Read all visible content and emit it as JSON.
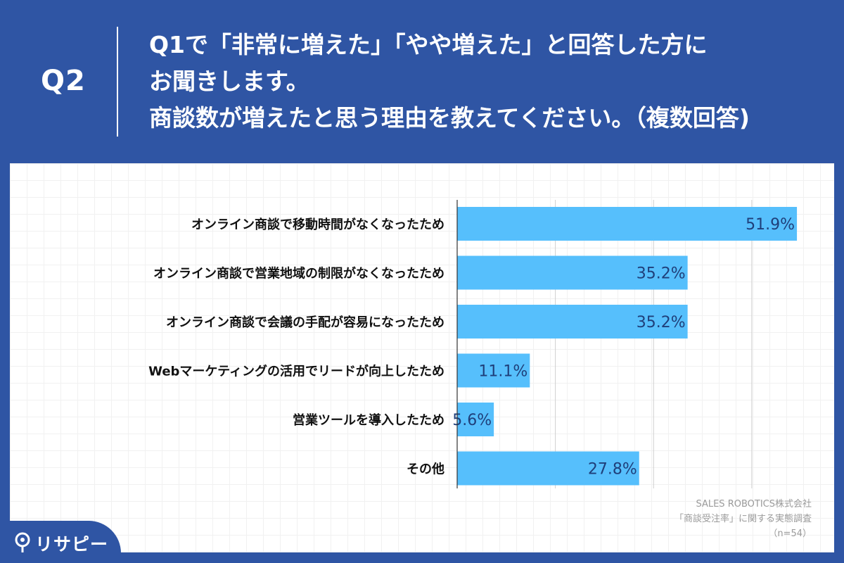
{
  "header": {
    "q_number": "Q2",
    "question_lines": [
      "Q1で「非常に増えた」「やや増えた」と回答した方に",
      "お聞きします。",
      "商談数が増えたと思う理由を教えてください。（複数回答)"
    ]
  },
  "colors": {
    "header_bg": "#2f55a4",
    "bar": "#56bffc",
    "bar_label": "#1f3f7a",
    "category_text": "#111111"
  },
  "chart_data": {
    "type": "bar",
    "orientation": "horizontal",
    "categories": [
      "オンライン商談で移動時間がなくなったため",
      "オンライン商談で営業地域の制限がなくなったため",
      "オンライン商談で会議の手配が容易になったため",
      "Webマーケティングの活用でリードが向上したため",
      "営業ツールを導入したため",
      "その他"
    ],
    "values": [
      51.9,
      35.2,
      35.2,
      11.1,
      5.6,
      27.8
    ],
    "value_labels": [
      "51.9%",
      "35.2%",
      "35.2%",
      "11.1%",
      "5.6%",
      "27.8%"
    ],
    "xlim": [
      0,
      52
    ],
    "gridlines": [
      15,
      30,
      45
    ],
    "grid": true
  },
  "source": {
    "lines": [
      "SALES ROBOTICS株式会社",
      "「商談受注率」に関する実態調査",
      "（n=54）"
    ]
  },
  "logo": {
    "text": "リサピー",
    "icon": "pin-icon"
  }
}
